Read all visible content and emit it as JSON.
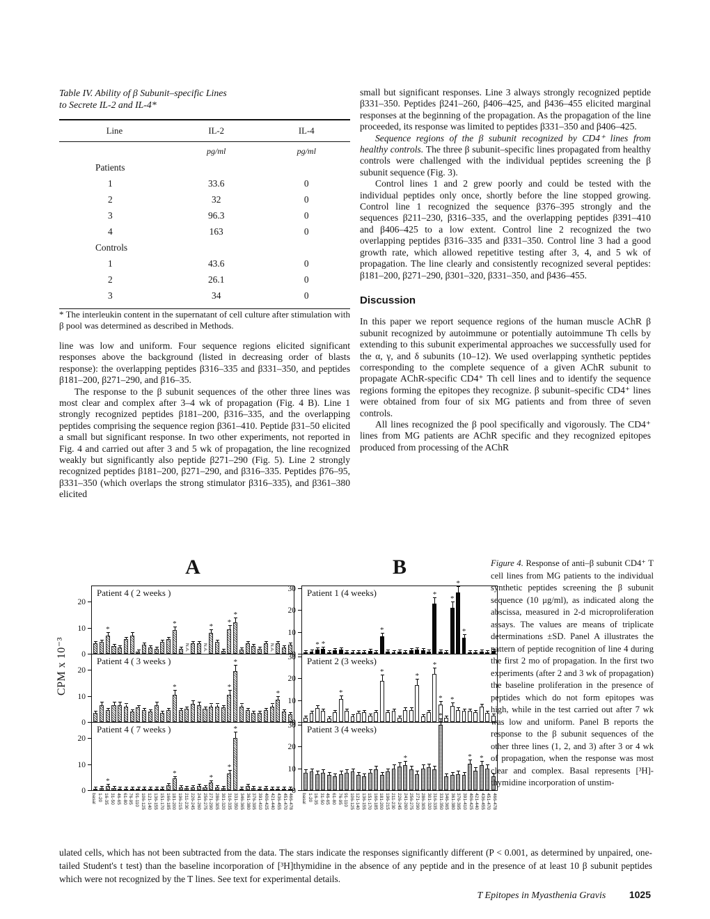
{
  "table": {
    "title_line1": "Table IV. Ability of β Subunit–specific Lines",
    "title_line2": "to Secrete IL-2 and IL-4*",
    "columns": [
      "Line",
      "IL-2",
      "IL-4"
    ],
    "units": [
      "pg/ml",
      "pg/ml"
    ],
    "groups": [
      {
        "label": "Patients",
        "rows": [
          [
            "1",
            "33.6",
            "0"
          ],
          [
            "2",
            "32",
            "0"
          ],
          [
            "3",
            "96.3",
            "0"
          ],
          [
            "4",
            "163",
            "0"
          ]
        ]
      },
      {
        "label": "Controls",
        "rows": [
          [
            "1",
            "43.6",
            "0"
          ],
          [
            "2",
            "26.1",
            "0"
          ],
          [
            "3",
            "34",
            "0"
          ]
        ]
      }
    ],
    "footnote": "* The interleukin content in the supernatant of cell culture after stimulation with β pool was determined as described in Methods."
  },
  "left_column": {
    "p1": "line was low and uniform. Four sequence regions elicited significant responses above the background (listed in decreasing order of blasts response): the overlapping peptides β316–335 and β331–350, and peptides β181–200, β271–290, and β16–35.",
    "p2": "The response to the β subunit sequences of the other three lines was most clear and complex after 3–4 wk of propagation (Fig. 4 B). Line 1 strongly recognized peptides β181–200, β316–335, and the overlapping peptides comprising the sequence region β361–410. Peptide β31–50 elicited a small but significant response. In two other experiments, not reported in Fig. 4 and carried out after 3 and 5 wk of propagation, the line recognized weakly but significantly also peptide β271–290 (Fig. 5). Line 2 strongly recognized peptides β181–200, β271–290, and β316–335. Peptides β76–95, β331–350 (which overlaps the strong stimulator β316–335), and β361–380 elicited"
  },
  "right_column": {
    "p1": "small but significant responses. Line 3 always strongly recognized peptide β331–350. Peptides β241–260, β406–425, and β436–455 elicited marginal responses at the beginning of the propagation. As the propagation of the line proceeded, its response was limited to peptides β331–350 and β406–425.",
    "p2_lead_italic": "Sequence regions of the β subunit recognized by CD4⁺ lines from healthy controls.",
    "p2_rest": " The three β subunit–specific lines propagated from healthy controls were challenged with the individual peptides screening the β subunit sequence (Fig. 3).",
    "p3": "Control lines 1 and 2 grew poorly and could be tested with the individual peptides only once, shortly before the line stopped growing. Control line 1 recognized the sequence β376–395 strongly and the sequences β211–230, β316–335, and the overlapping peptides β391–410 and β406–425 to a low extent. Control line 2 recognized the two overlapping peptides β316–335 and β331–350. Control line 3 had a good growth rate, which allowed repetitive testing after 3, 4, and 5 wk of propagation. The line clearly and consistently recognized several peptides: β181–200, β271–290, β301–320, β331–350, and β436–455.",
    "discussion_heading": "Discussion",
    "p4": "In this paper we report sequence regions of the human muscle AChR β subunit recognized by autoimmune or potentially autoimmune Th cells by extending to this subunit experimental approaches we successfully used for the α, γ, and δ subunits (10–12). We used overlapping synthetic peptides corresponding to the complete sequence of a given AChR subunit to propagate AChR-specific CD4⁺ Th cell lines and to identify the sequence regions forming the epitopes they recognize. β subunit–specific CD4⁺ lines were obtained from four of six MG patients and from three of seven controls.",
    "p5": "All lines recognized the β pool specifically and vigorously. The CD4⁺ lines from MG patients are AChR specific and they recognized epitopes produced from processing of the AChR"
  },
  "figure": {
    "panel_a_letter": "A",
    "panel_b_letter": "B",
    "y_axis_label": "CPM x 10⁻³",
    "caption_lead_italic": "Figure 4.",
    "caption_rest": " Response of anti–β subunit CD4⁺ T cell lines from MG patients to the individual synthetic peptides screening the β subunit sequence (10 μg/ml), as indicated along the abscissa, measured in 2-d microproliferation assays. The values are means of triplicate determinations ±SD. Panel A illustrates the pattern of peptide recognition of line 4 during the first 2 mo of propagation. In the first two experiments (after 2 and 3 wk of propagation) the baseline proliferation in the presence of peptides which do not form epitopes was high, while in the test carried out after 7 wk was low and uniform. Panel B reports the response to the β subunit sequences of the other three lines (1, 2, and 3) after 3 or 4 wk of propagation, when the response was most clear and complex. Basal represents [³H]-thymidine incorporation of unstim-"
  },
  "footnote_continuation": "ulated cells, which has not been subtracted from the data. The stars indicate the responses significantly different (P < 0.001, as determined by unpaired, one-tailed Student's t test) than the baseline incorporation of [³H]thymidine in the absence of any peptide and in the presence of at least 10 β subunit peptides which were not recognized by the T lines. See text for experimental details.",
  "footer": {
    "running_title": "T Epitopes in Myasthenia Gravis",
    "page_number": "1025"
  },
  "chart_data": {
    "type": "bar",
    "ylabel": "CPM x 10⁻³",
    "categories": [
      "basal",
      "1-20",
      "16-35",
      "31-50",
      "46-65",
      "61-80",
      "76-95",
      "91-110",
      "106-125",
      "121-140",
      "136-155",
      "151-170",
      "166-185",
      "181-200",
      "196-215",
      "211-230",
      "226-245",
      "241-260",
      "256-275",
      "271-290",
      "286-305",
      "301-320",
      "316-335",
      "331-350",
      "346-365",
      "361-380",
      "376-395",
      "391-410",
      "406-425",
      "421-440",
      "436-455",
      "451-470",
      "466-478"
    ],
    "panels": [
      {
        "panel": "A",
        "title": "Patient  4 ( 2 weeks )",
        "style": "hatched",
        "ymax": 26,
        "yticks": [
          0,
          10,
          20
        ],
        "values": [
          4,
          4.5,
          7,
          3,
          2.5,
          5.5,
          7,
          0.8,
          3.5,
          2.5,
          2,
          4.5,
          5.5,
          9,
          2,
          null,
          4,
          4,
          null,
          8,
          4.5,
          1,
          9.5,
          12,
          1.5,
          4,
          3,
          2,
          4,
          null,
          4,
          2.5,
          3.5
        ],
        "stars": [
          2,
          13,
          19,
          22,
          23
        ]
      },
      {
        "panel": "A",
        "title": "Patient  4 ( 3 weeks )",
        "style": "hatched",
        "ymax": 26,
        "yticks": [
          0,
          10,
          20
        ],
        "values": [
          3.5,
          6.5,
          4.5,
          6.5,
          6.5,
          6,
          4,
          5.5,
          4.5,
          4,
          6.5,
          3.5,
          4.5,
          10.5,
          4.5,
          5,
          7,
          6.5,
          5,
          6,
          6,
          5.5,
          10.5,
          19.5,
          6,
          4.5,
          3.5,
          3.5,
          4.5,
          6,
          8.5,
          4,
          3
        ],
        "stars": [
          13,
          22,
          23,
          30
        ]
      },
      {
        "panel": "A",
        "title": "Patient  4 ( 7 weeks )",
        "style": "hatched",
        "ymax": 26,
        "yticks": [
          0,
          10,
          20
        ],
        "values": [
          0.5,
          0.7,
          1.5,
          0.7,
          0.6,
          0.5,
          0.5,
          0.5,
          0.6,
          0.5,
          0.5,
          0.5,
          1.8,
          4.5,
          1,
          0.8,
          1,
          1.5,
          1,
          3,
          1.2,
          0.7,
          6.5,
          20,
          0.5,
          1.5,
          0.8,
          0.6,
          0.7,
          0.5,
          0.6,
          0.5,
          0.5
        ],
        "stars": [
          2,
          13,
          19,
          22,
          23
        ]
      },
      {
        "panel": "B",
        "title": "Patient  1 (4 weeks)",
        "style": "solid",
        "ymax": 31,
        "yticks": [
          0,
          10,
          20,
          30
        ],
        "values": [
          0.8,
          1,
          2,
          2.2,
          0.8,
          1.5,
          1.8,
          0.7,
          0.8,
          0.6,
          0.8,
          1.2,
          0.8,
          8,
          1,
          0.8,
          1,
          0.7,
          1.5,
          1.8,
          1.5,
          0.9,
          23,
          1,
          0.7,
          21,
          28,
          7.5,
          0.8,
          0.6,
          1,
          0.8,
          1.2
        ],
        "stars": [
          2,
          3,
          13,
          22,
          25,
          26,
          27
        ]
      },
      {
        "panel": "B",
        "title": "Patient  2 (3 weeks)",
        "style": "open",
        "ymax": 31,
        "yticks": [
          0,
          10,
          20,
          30
        ],
        "values": [
          2,
          4,
          6.5,
          5,
          1.5,
          4.5,
          10.5,
          5,
          2.5,
          4,
          4.5,
          3,
          4.5,
          19,
          4.5,
          5,
          2,
          5.5,
          5.5,
          17,
          2.5,
          4.5,
          22,
          8,
          2,
          7.5,
          5.5,
          5,
          5,
          4.5,
          7,
          4,
          3
        ],
        "stars": [
          6,
          13,
          19,
          22,
          23,
          25
        ]
      },
      {
        "panel": "B",
        "title": "Patient  3 (4 weeks)",
        "style": "gray",
        "ymax": 31,
        "yticks": [
          0,
          10,
          20,
          30
        ],
        "values": [
          8,
          8.5,
          7.5,
          8,
          7,
          6.5,
          7.5,
          8,
          8.5,
          7,
          6.5,
          8,
          9.5,
          7,
          8.5,
          10,
          11,
          11.5,
          9.5,
          7.5,
          10,
          10.5,
          9.5,
          30,
          6.5,
          7,
          7.5,
          7,
          12,
          9,
          11.5,
          10,
          6.5
        ],
        "stars": [
          17,
          23,
          28,
          30
        ]
      }
    ]
  }
}
